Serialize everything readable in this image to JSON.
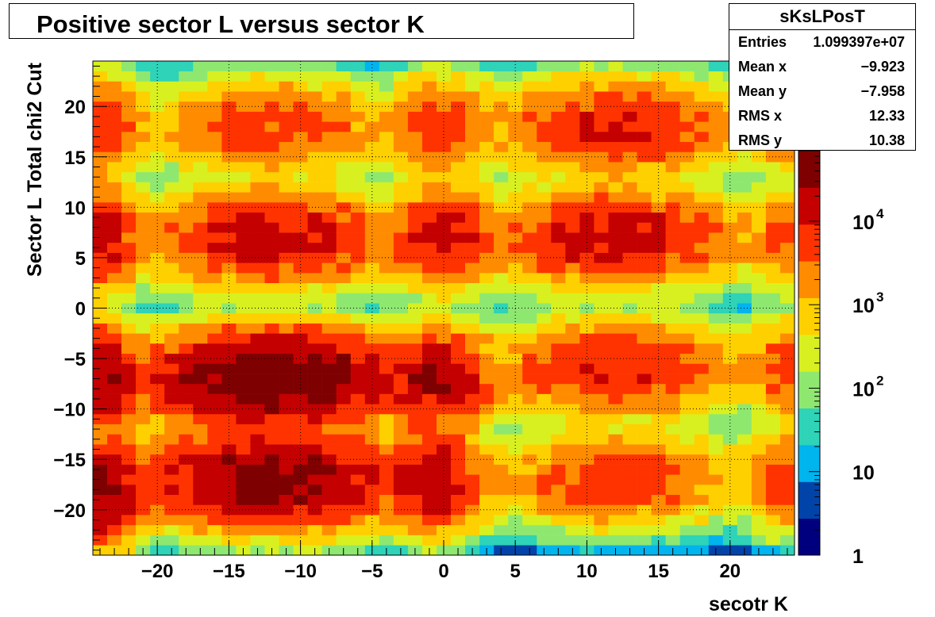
{
  "title": "Positive sector L versus sector K",
  "stats": {
    "name": "sKsLPosT",
    "rows": [
      {
        "label": "Entries",
        "value": "1.099397e+07"
      },
      {
        "label": "Mean x",
        "value": "−9.923"
      },
      {
        "label": "Mean y",
        "value": "−7.958"
      },
      {
        "label": "RMS x",
        "value": "12.33"
      },
      {
        "label": "RMS y",
        "value": "10.38"
      }
    ]
  },
  "chart_data": {
    "type": "heatmap",
    "title": "Positive sector L versus sector K",
    "xlabel": "secotr K",
    "ylabel": "Sector L  Total chi2 Cut",
    "xlim": [
      -24.5,
      24.5
    ],
    "ylim": [
      -24.5,
      24.5
    ],
    "x_ticks": [
      -20,
      -15,
      -10,
      -5,
      0,
      5,
      10,
      15,
      20
    ],
    "y_ticks": [
      -20,
      -15,
      -10,
      -5,
      0,
      5,
      10,
      15,
      20
    ],
    "x_tick_labels": [
      "−20",
      "−15",
      "−10",
      "−5",
      "0",
      "5",
      "10",
      "15",
      "20"
    ],
    "y_tick_labels": [
      "−20",
      "−15",
      "−10",
      "−5",
      "0",
      "5",
      "10",
      "15",
      "20"
    ],
    "grid": true,
    "z_scale": "log",
    "z_range": [
      1,
      70000
    ],
    "z_ticks": [
      1,
      10,
      100,
      1000,
      10000
    ],
    "z_tick_labels": [
      {
        "base": "1",
        "exp": ""
      },
      {
        "base": "10",
        "exp": ""
      },
      {
        "base": "10",
        "exp": "2"
      },
      {
        "base": "10",
        "exp": "3"
      },
      {
        "base": "10",
        "exp": "4"
      }
    ],
    "colormap": [
      "#00007f",
      "#0044aa",
      "#00b4ee",
      "#2ed3b8",
      "#8ee870",
      "#d8f020",
      "#ffd000",
      "#ff8c00",
      "#ff3300",
      "#c40000",
      "#7f0000"
    ],
    "bins": "integer bins, −24 to 24 on both axes",
    "clusters": [
      {
        "x": -12,
        "y": -17,
        "peak": 40000
      },
      {
        "x": -12,
        "y": -7,
        "peak": 60000
      },
      {
        "x": -12,
        "y": 7,
        "peak": 15000
      },
      {
        "x": -12,
        "y": 18,
        "peak": 6000
      },
      {
        "x": 12,
        "y": -17,
        "peak": 6000
      },
      {
        "x": 12,
        "y": -6,
        "peak": 10000
      },
      {
        "x": 12,
        "y": 7,
        "peak": 15000
      },
      {
        "x": 12,
        "y": 18,
        "peak": 10000
      },
      {
        "x": -24,
        "y": -18,
        "peak": 40000
      },
      {
        "x": -24,
        "y": -7,
        "peak": 30000
      },
      {
        "x": -24,
        "y": 7,
        "peak": 15000
      },
      {
        "x": -24,
        "y": 18,
        "peak": 8000
      },
      {
        "x": 24,
        "y": -17,
        "peak": 6000
      },
      {
        "x": 24,
        "y": -6,
        "peak": 5000
      },
      {
        "x": 24,
        "y": 7,
        "peak": 4000
      },
      {
        "x": 24,
        "y": 18,
        "peak": 3000
      },
      {
        "x": -1,
        "y": -17,
        "peak": 20000
      },
      {
        "x": -1,
        "y": -7,
        "peak": 20000
      },
      {
        "x": -1,
        "y": 7,
        "peak": 8000
      },
      {
        "x": -1,
        "y": 18,
        "peak": 5000
      },
      {
        "x": 1,
        "y": -17,
        "peak": 4000
      },
      {
        "x": 1,
        "y": -7,
        "peak": 8000
      },
      {
        "x": 1,
        "y": 7,
        "peak": 8000
      },
      {
        "x": 1,
        "y": 18,
        "peak": 3000
      }
    ]
  }
}
